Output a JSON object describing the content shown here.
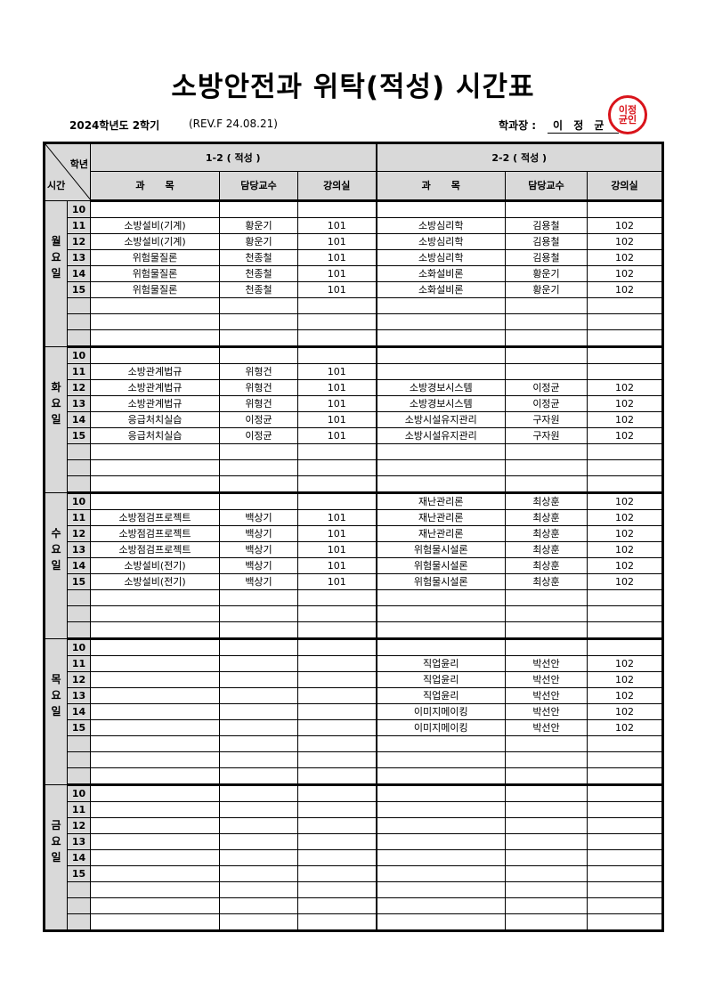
{
  "title": "소방안전과 위탁(적성) 시간표",
  "term": "2024학년도  2학기",
  "revision": "(REV.F  24.08.21)",
  "head": {
    "label": "학과장 :",
    "name": "이 정 균",
    "stamp_text": "이정균인"
  },
  "colors": {
    "header_bg": "#d9d9d9",
    "stamp": "#d9141b"
  },
  "table": {
    "corner_top": "학년",
    "corner_bottom": "시간",
    "groups": [
      "1-2 ( 적성 )",
      "2-2 ( 적성 )"
    ],
    "columns": [
      "과      목",
      "담당교수",
      "강의실",
      "과      목",
      "담당교수",
      "강의실"
    ],
    "periods": [
      "10",
      "11",
      "12",
      "13",
      "14",
      "15",
      "",
      "",
      ""
    ],
    "days": [
      {
        "label": "월요일",
        "rows": [
          [
            "",
            "",
            "",
            "",
            "",
            ""
          ],
          [
            "소방설비(기계)",
            "황운기",
            "101",
            "소방심리학",
            "김용철",
            "102"
          ],
          [
            "소방설비(기계)",
            "황운기",
            "101",
            "소방심리학",
            "김용철",
            "102"
          ],
          [
            "위험물질론",
            "천종철",
            "101",
            "소방심리학",
            "김용철",
            "102"
          ],
          [
            "위험물질론",
            "천종철",
            "101",
            "소화설비론",
            "황운기",
            "102"
          ],
          [
            "위험물질론",
            "천종철",
            "101",
            "소화설비론",
            "황운기",
            "102"
          ],
          [
            "",
            "",
            "",
            "",
            "",
            ""
          ],
          [
            "",
            "",
            "",
            "",
            "",
            ""
          ],
          [
            "",
            "",
            "",
            "",
            "",
            ""
          ]
        ]
      },
      {
        "label": "화요일",
        "rows": [
          [
            "",
            "",
            "",
            "",
            "",
            ""
          ],
          [
            "소방관계법규",
            "위형건",
            "101",
            "",
            "",
            ""
          ],
          [
            "소방관계법규",
            "위형건",
            "101",
            "소방경보시스템",
            "이정균",
            "102"
          ],
          [
            "소방관계법규",
            "위형건",
            "101",
            "소방경보시스템",
            "이정균",
            "102"
          ],
          [
            "응급처치실습",
            "이정균",
            "101",
            "소방시설유지관리",
            "구자원",
            "102"
          ],
          [
            "응급처치실습",
            "이정균",
            "101",
            "소방시설유지관리",
            "구자원",
            "102"
          ],
          [
            "",
            "",
            "",
            "",
            "",
            ""
          ],
          [
            "",
            "",
            "",
            "",
            "",
            ""
          ],
          [
            "",
            "",
            "",
            "",
            "",
            ""
          ]
        ]
      },
      {
        "label": "수요일",
        "rows": [
          [
            "",
            "",
            "",
            "재난관리론",
            "최상훈",
            "102"
          ],
          [
            "소방점검프로젝트",
            "백상기",
            "101",
            "재난관리론",
            "최상훈",
            "102"
          ],
          [
            "소방점검프로젝트",
            "백상기",
            "101",
            "재난관리론",
            "최상훈",
            "102"
          ],
          [
            "소방점검프로젝트",
            "백상기",
            "101",
            "위험물시설론",
            "최상훈",
            "102"
          ],
          [
            "소방설비(전기)",
            "백상기",
            "101",
            "위험물시설론",
            "최상훈",
            "102"
          ],
          [
            "소방설비(전기)",
            "백상기",
            "101",
            "위험물시설론",
            "최상훈",
            "102"
          ],
          [
            "",
            "",
            "",
            "",
            "",
            ""
          ],
          [
            "",
            "",
            "",
            "",
            "",
            ""
          ],
          [
            "",
            "",
            "",
            "",
            "",
            ""
          ]
        ]
      },
      {
        "label": "목요일",
        "rows": [
          [
            "",
            "",
            "",
            "",
            "",
            ""
          ],
          [
            "",
            "",
            "",
            "직업윤리",
            "박선안",
            "102"
          ],
          [
            "",
            "",
            "",
            "직업윤리",
            "박선안",
            "102"
          ],
          [
            "",
            "",
            "",
            "직업윤리",
            "박선안",
            "102"
          ],
          [
            "",
            "",
            "",
            "이미지메이킹",
            "박선안",
            "102"
          ],
          [
            "",
            "",
            "",
            "이미지메이킹",
            "박선안",
            "102"
          ],
          [
            "",
            "",
            "",
            "",
            "",
            ""
          ],
          [
            "",
            "",
            "",
            "",
            "",
            ""
          ],
          [
            "",
            "",
            "",
            "",
            "",
            ""
          ]
        ]
      },
      {
        "label": "금요일",
        "rows": [
          [
            "",
            "",
            "",
            "",
            "",
            ""
          ],
          [
            "",
            "",
            "",
            "",
            "",
            ""
          ],
          [
            "",
            "",
            "",
            "",
            "",
            ""
          ],
          [
            "",
            "",
            "",
            "",
            "",
            ""
          ],
          [
            "",
            "",
            "",
            "",
            "",
            ""
          ],
          [
            "",
            "",
            "",
            "",
            "",
            ""
          ],
          [
            "",
            "",
            "",
            "",
            "",
            ""
          ],
          [
            "",
            "",
            "",
            "",
            "",
            ""
          ],
          [
            "",
            "",
            "",
            "",
            "",
            ""
          ]
        ]
      }
    ]
  }
}
